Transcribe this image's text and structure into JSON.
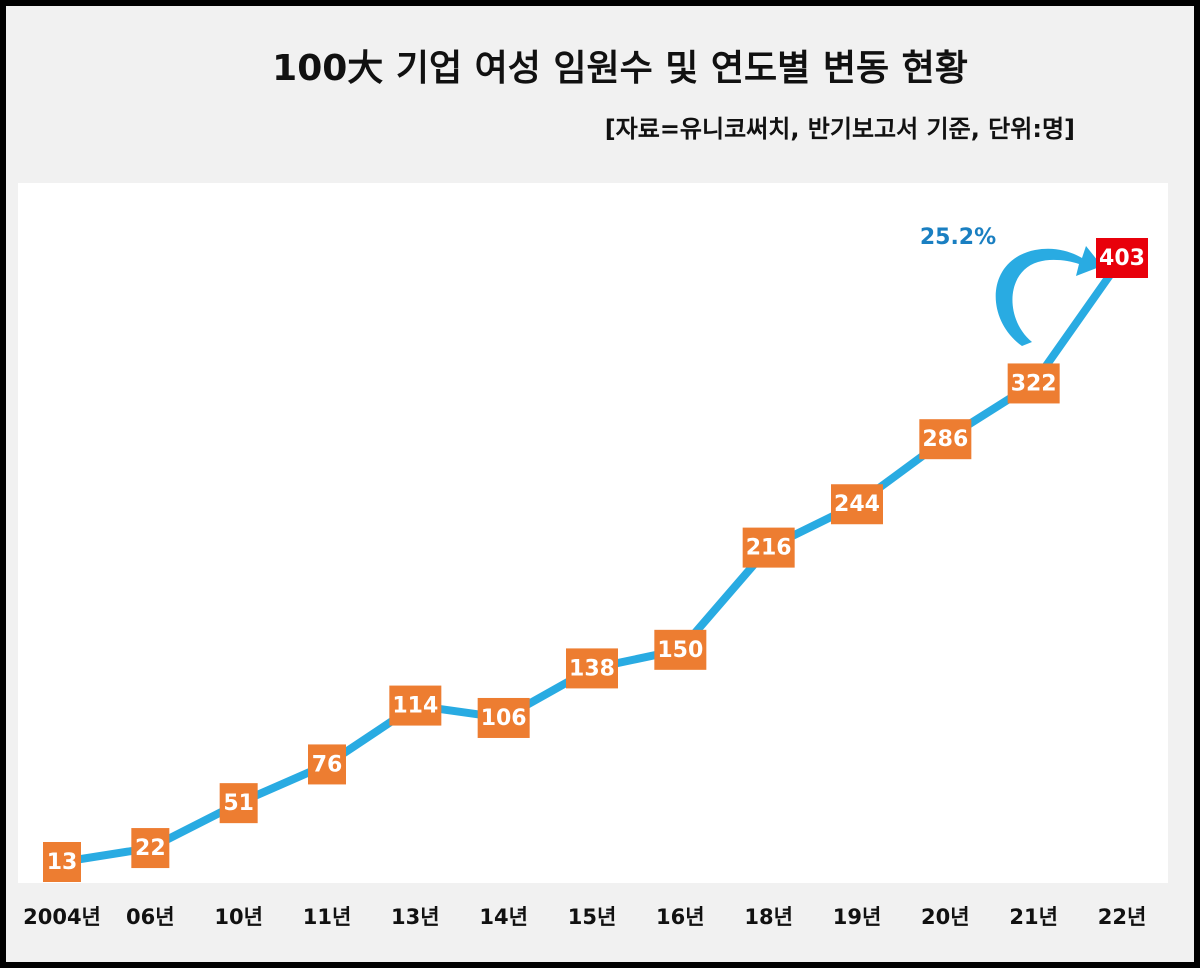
{
  "chart_data": {
    "type": "line",
    "title": "100大 기업 여성 임원수 및 연도별 변동 현황",
    "subtitle": "[자료=유니코써치, 반기보고서 기준, 단위:명]",
    "annotation": "25.2%",
    "categories": [
      "2004년",
      "06년",
      "10년",
      "11년",
      "13년",
      "14년",
      "15년",
      "16년",
      "18년",
      "19년",
      "20년",
      "21년",
      "22년"
    ],
    "values": [
      13,
      22,
      51,
      76,
      114,
      106,
      138,
      150,
      216,
      244,
      286,
      322,
      403
    ],
    "color": "#29abe2",
    "marker_color": "#ed7d31",
    "last_marker_color": "#e8000b",
    "annotation_color": "#1a7fc1"
  }
}
